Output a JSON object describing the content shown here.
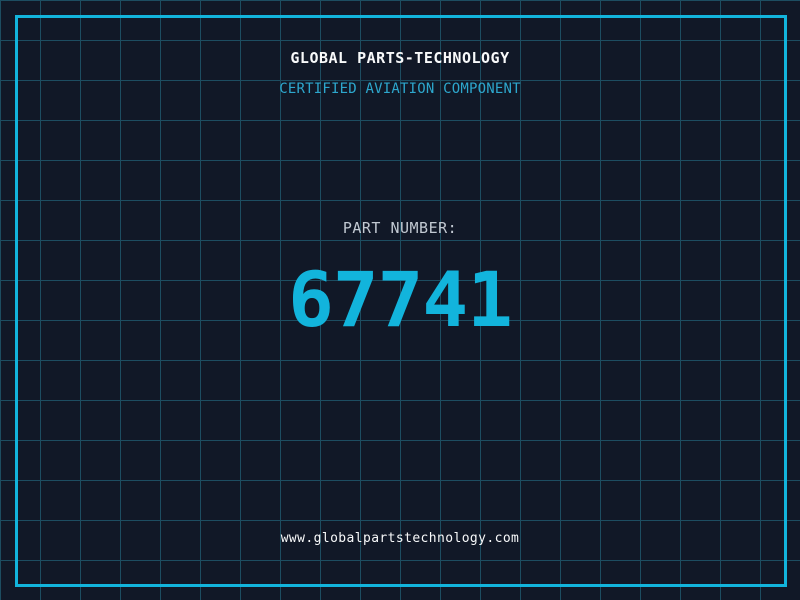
{
  "brand": {
    "title": "GLOBAL PARTS-TECHNOLOGY",
    "subtitle": "CERTIFIED AVIATION COMPONENT"
  },
  "part": {
    "label": "PART NUMBER:",
    "number": "67741"
  },
  "footer": {
    "url": "www.globalpartstechnology.com"
  },
  "colors": {
    "background": "#111827",
    "grid": "#1d4d61",
    "accent": "#12b4dc",
    "subtitle": "#2da7cd",
    "label": "#c2c9d2",
    "text": "#f8f9fa"
  }
}
